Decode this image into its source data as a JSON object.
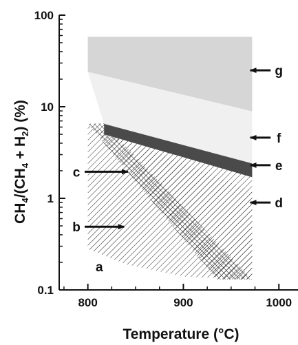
{
  "chart_data": {
    "type": "area",
    "title": "",
    "xlabel": "Temperature (°C)",
    "ylabel": "CH4/(CH4 + H2) (%)",
    "x_scale": "linear",
    "y_scale": "log",
    "xlim": [
      770,
      1020
    ],
    "ylim": [
      0.1,
      100
    ],
    "x_ticks": [
      "800",
      "900",
      "1000"
    ],
    "y_ticks": [
      "0.1",
      "1",
      "10",
      "100"
    ],
    "grid": false,
    "regions": [
      {
        "label": "a",
        "description": "unshaded region at low CH4 fraction",
        "label_at": {
          "x": 812,
          "y": 0.18
        },
        "arrow": false
      },
      {
        "label": "b",
        "fill": "diagonal-hatch",
        "polygon": [
          [
            800,
            6.3
          ],
          [
            800,
            0.28
          ],
          [
            840,
            0.19
          ],
          [
            900,
            0.14
          ],
          [
            972,
            0.13
          ],
          [
            972,
            1.2
          ]
        ],
        "label_at": {
          "x": 788,
          "y": 0.49
        },
        "arrow_tip": {
          "x": 838,
          "y": 0.49
        }
      },
      {
        "label": "c",
        "fill": "cross-hatch",
        "polygon": [
          [
            800,
            6.5
          ],
          [
            817,
            6.6
          ],
          [
            972,
            0.13
          ],
          [
            935,
            0.13
          ]
        ],
        "label_at": {
          "x": 788,
          "y": 1.95
        },
        "arrow_tip": {
          "x": 842,
          "y": 1.95
        }
      },
      {
        "label": "d",
        "fill": "diagonal-hatch",
        "polygon": [
          [
            817,
            6.5
          ],
          [
            972,
            1.7
          ],
          [
            972,
            0.13
          ],
          [
            935,
            0.13
          ]
        ],
        "label_at": {
          "x": 1000,
          "y": 0.9
        },
        "arrow_tip": {
          "x": 970,
          "y": 0.9
        }
      },
      {
        "label": "e",
        "fill": "#4a4a4a",
        "polygon": [
          [
            817,
            6.5
          ],
          [
            972,
            2.4
          ],
          [
            972,
            1.7
          ],
          [
            817,
            5.0
          ]
        ],
        "label_at": {
          "x": 1000,
          "y": 2.3
        },
        "arrow_tip": {
          "x": 970,
          "y": 2.3
        }
      },
      {
        "label": "f",
        "fill": "#f0f0f0",
        "polygon": [
          [
            800,
            24
          ],
          [
            972,
            8.9
          ],
          [
            972,
            2.4
          ],
          [
            817,
            6.5
          ]
        ],
        "label_at": {
          "x": 1000,
          "y": 4.6
        },
        "arrow_tip": {
          "x": 970,
          "y": 4.6
        }
      },
      {
        "label": "g",
        "fill": "#d6d6d6",
        "polygon": [
          [
            800,
            58
          ],
          [
            972,
            58
          ],
          [
            972,
            8.9
          ],
          [
            800,
            24
          ]
        ],
        "label_at": {
          "x": 1000,
          "y": 25
        },
        "arrow_tip": {
          "x": 970,
          "y": 25
        }
      }
    ]
  }
}
